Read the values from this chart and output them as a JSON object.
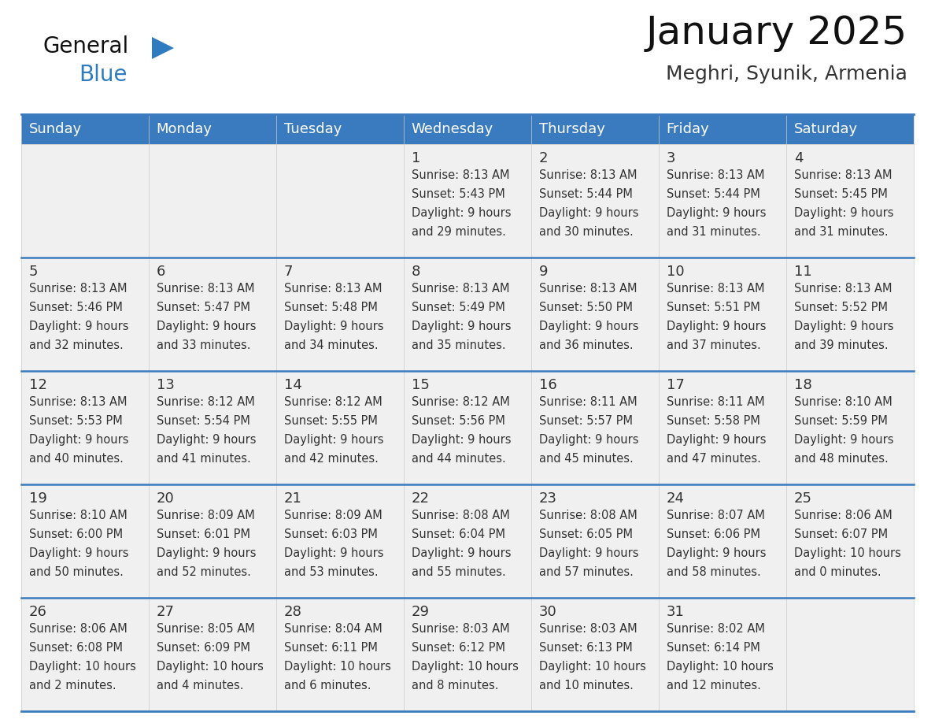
{
  "title": "January 2025",
  "subtitle": "Meghri, Syunik, Armenia",
  "header_bg": "#3a7bbf",
  "header_text": "#ffffff",
  "cell_bg": "#f0f0f0",
  "border_color": "#3a7bbf",
  "text_color": "#333333",
  "days_of_week": [
    "Sunday",
    "Monday",
    "Tuesday",
    "Wednesday",
    "Thursday",
    "Friday",
    "Saturday"
  ],
  "weeks": [
    [
      {
        "day": "",
        "info": ""
      },
      {
        "day": "",
        "info": ""
      },
      {
        "day": "",
        "info": ""
      },
      {
        "day": "1",
        "info": "Sunrise: 8:13 AM\nSunset: 5:43 PM\nDaylight: 9 hours\nand 29 minutes."
      },
      {
        "day": "2",
        "info": "Sunrise: 8:13 AM\nSunset: 5:44 PM\nDaylight: 9 hours\nand 30 minutes."
      },
      {
        "day": "3",
        "info": "Sunrise: 8:13 AM\nSunset: 5:44 PM\nDaylight: 9 hours\nand 31 minutes."
      },
      {
        "day": "4",
        "info": "Sunrise: 8:13 AM\nSunset: 5:45 PM\nDaylight: 9 hours\nand 31 minutes."
      }
    ],
    [
      {
        "day": "5",
        "info": "Sunrise: 8:13 AM\nSunset: 5:46 PM\nDaylight: 9 hours\nand 32 minutes."
      },
      {
        "day": "6",
        "info": "Sunrise: 8:13 AM\nSunset: 5:47 PM\nDaylight: 9 hours\nand 33 minutes."
      },
      {
        "day": "7",
        "info": "Sunrise: 8:13 AM\nSunset: 5:48 PM\nDaylight: 9 hours\nand 34 minutes."
      },
      {
        "day": "8",
        "info": "Sunrise: 8:13 AM\nSunset: 5:49 PM\nDaylight: 9 hours\nand 35 minutes."
      },
      {
        "day": "9",
        "info": "Sunrise: 8:13 AM\nSunset: 5:50 PM\nDaylight: 9 hours\nand 36 minutes."
      },
      {
        "day": "10",
        "info": "Sunrise: 8:13 AM\nSunset: 5:51 PM\nDaylight: 9 hours\nand 37 minutes."
      },
      {
        "day": "11",
        "info": "Sunrise: 8:13 AM\nSunset: 5:52 PM\nDaylight: 9 hours\nand 39 minutes."
      }
    ],
    [
      {
        "day": "12",
        "info": "Sunrise: 8:13 AM\nSunset: 5:53 PM\nDaylight: 9 hours\nand 40 minutes."
      },
      {
        "day": "13",
        "info": "Sunrise: 8:12 AM\nSunset: 5:54 PM\nDaylight: 9 hours\nand 41 minutes."
      },
      {
        "day": "14",
        "info": "Sunrise: 8:12 AM\nSunset: 5:55 PM\nDaylight: 9 hours\nand 42 minutes."
      },
      {
        "day": "15",
        "info": "Sunrise: 8:12 AM\nSunset: 5:56 PM\nDaylight: 9 hours\nand 44 minutes."
      },
      {
        "day": "16",
        "info": "Sunrise: 8:11 AM\nSunset: 5:57 PM\nDaylight: 9 hours\nand 45 minutes."
      },
      {
        "day": "17",
        "info": "Sunrise: 8:11 AM\nSunset: 5:58 PM\nDaylight: 9 hours\nand 47 minutes."
      },
      {
        "day": "18",
        "info": "Sunrise: 8:10 AM\nSunset: 5:59 PM\nDaylight: 9 hours\nand 48 minutes."
      }
    ],
    [
      {
        "day": "19",
        "info": "Sunrise: 8:10 AM\nSunset: 6:00 PM\nDaylight: 9 hours\nand 50 minutes."
      },
      {
        "day": "20",
        "info": "Sunrise: 8:09 AM\nSunset: 6:01 PM\nDaylight: 9 hours\nand 52 minutes."
      },
      {
        "day": "21",
        "info": "Sunrise: 8:09 AM\nSunset: 6:03 PM\nDaylight: 9 hours\nand 53 minutes."
      },
      {
        "day": "22",
        "info": "Sunrise: 8:08 AM\nSunset: 6:04 PM\nDaylight: 9 hours\nand 55 minutes."
      },
      {
        "day": "23",
        "info": "Sunrise: 8:08 AM\nSunset: 6:05 PM\nDaylight: 9 hours\nand 57 minutes."
      },
      {
        "day": "24",
        "info": "Sunrise: 8:07 AM\nSunset: 6:06 PM\nDaylight: 9 hours\nand 58 minutes."
      },
      {
        "day": "25",
        "info": "Sunrise: 8:06 AM\nSunset: 6:07 PM\nDaylight: 10 hours\nand 0 minutes."
      }
    ],
    [
      {
        "day": "26",
        "info": "Sunrise: 8:06 AM\nSunset: 6:08 PM\nDaylight: 10 hours\nand 2 minutes."
      },
      {
        "day": "27",
        "info": "Sunrise: 8:05 AM\nSunset: 6:09 PM\nDaylight: 10 hours\nand 4 minutes."
      },
      {
        "day": "28",
        "info": "Sunrise: 8:04 AM\nSunset: 6:11 PM\nDaylight: 10 hours\nand 6 minutes."
      },
      {
        "day": "29",
        "info": "Sunrise: 8:03 AM\nSunset: 6:12 PM\nDaylight: 10 hours\nand 8 minutes."
      },
      {
        "day": "30",
        "info": "Sunrise: 8:03 AM\nSunset: 6:13 PM\nDaylight: 10 hours\nand 10 minutes."
      },
      {
        "day": "31",
        "info": "Sunrise: 8:02 AM\nSunset: 6:14 PM\nDaylight: 10 hours\nand 12 minutes."
      },
      {
        "day": "",
        "info": ""
      }
    ]
  ],
  "logo_general_color": "#111111",
  "logo_blue_color": "#2e7bbf",
  "logo_triangle_color": "#2e7bbf",
  "title_fontsize": 36,
  "subtitle_fontsize": 18,
  "header_fontsize": 13,
  "day_num_fontsize": 13,
  "info_fontsize": 10.5
}
